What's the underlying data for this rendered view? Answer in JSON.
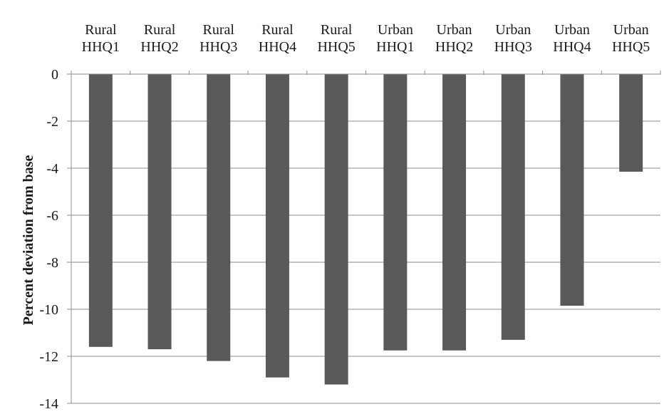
{
  "chart_data": {
    "type": "bar",
    "title": "",
    "xlabel": "",
    "ylabel": "Percent deviation from base",
    "ylim": [
      -14,
      0
    ],
    "yticks": [
      0,
      -2,
      -4,
      -6,
      -8,
      -10,
      -12,
      -14
    ],
    "grid": true,
    "category_axis_position": "top",
    "bar_color": "#595959",
    "categories": [
      [
        "Rural",
        "HHQ1"
      ],
      [
        "Rural",
        "HHQ2"
      ],
      [
        "Rural",
        "HHQ3"
      ],
      [
        "Rural",
        "HHQ4"
      ],
      [
        "Rural",
        "HHQ5"
      ],
      [
        "Urban",
        "HHQ1"
      ],
      [
        "Urban",
        "HHQ2"
      ],
      [
        "Urban",
        "HHQ3"
      ],
      [
        "Urban",
        "HHQ4"
      ],
      [
        "Urban",
        "HHQ5"
      ]
    ],
    "values": [
      -11.6,
      -11.7,
      -12.2,
      -12.9,
      -13.2,
      -11.75,
      -11.75,
      -11.3,
      -9.85,
      -4.15
    ]
  }
}
